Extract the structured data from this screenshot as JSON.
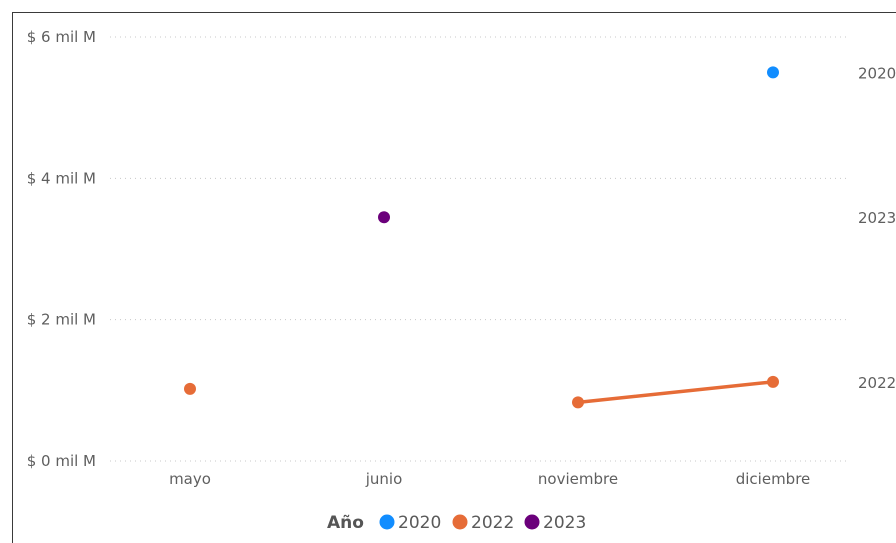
{
  "chart_data": {
    "type": "line",
    "categories": [
      "mayo",
      "junio",
      "noviembre",
      "diciembre"
    ],
    "y_ticks": [
      "$ 0 mil M",
      "$ 2 mil M",
      "$ 4 mil M",
      "$ 6 mil M"
    ],
    "y_tick_values": [
      0,
      2,
      4,
      6
    ],
    "ylim": [
      0,
      6
    ],
    "grid": true,
    "legend": {
      "title": "Año",
      "position": "bottom-center"
    },
    "series": [
      {
        "name": "2020",
        "color": "#118DFF",
        "values": [
          null,
          null,
          null,
          5.5
        ],
        "end_label": "2020"
      },
      {
        "name": "2022",
        "color": "#E66C37",
        "values": [
          1.02,
          null,
          0.83,
          1.12
        ],
        "end_label": "2022"
      },
      {
        "name": "2023",
        "color": "#6B007B",
        "values": [
          null,
          3.45,
          null,
          null
        ],
        "end_label": "2023"
      }
    ]
  }
}
